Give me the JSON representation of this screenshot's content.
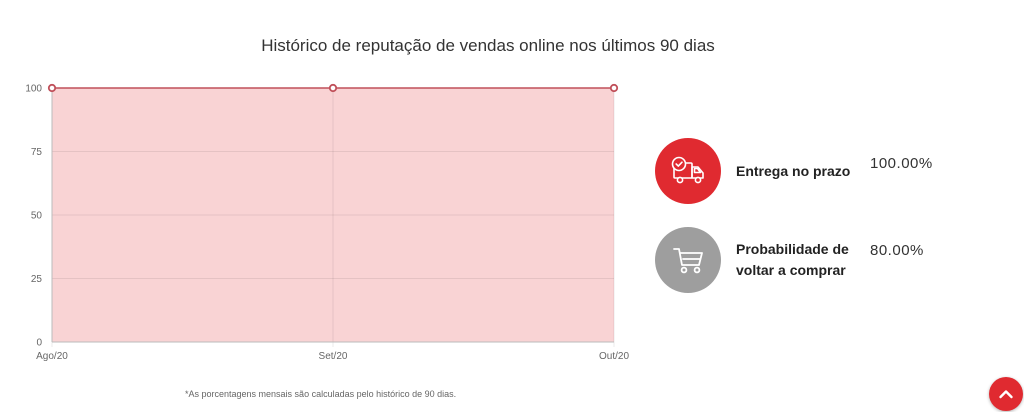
{
  "chart_data": {
    "type": "area",
    "title": "Histórico de reputação de vendas online nos últimos 90 dias",
    "categories": [
      "Ago/20",
      "Set/20",
      "Out/20"
    ],
    "series": [
      {
        "values": [
          100,
          100,
          100
        ]
      }
    ],
    "ylim": [
      0,
      100
    ],
    "y_ticks": [
      "0",
      "25",
      "50",
      "75",
      "100"
    ],
    "grid": true,
    "line_color": "#c0505a",
    "fill_color": "#f9d3d4"
  },
  "metrics": [
    {
      "label": "Entrega no prazo",
      "value": "100.00%",
      "icon": "delivery-truck-clock-icon",
      "color": "#e02a30"
    },
    {
      "label": "Probabilidade de voltar a comprar",
      "value": "80.00%",
      "icon": "shopping-cart-icon",
      "color": "#9e9e9e"
    }
  ],
  "footnote": "*As porcentagens mensais são calculadas pelo histórico de 90 dias.",
  "scroll_top": {
    "icon": "chevron-up-icon",
    "color": "#e02a30"
  }
}
